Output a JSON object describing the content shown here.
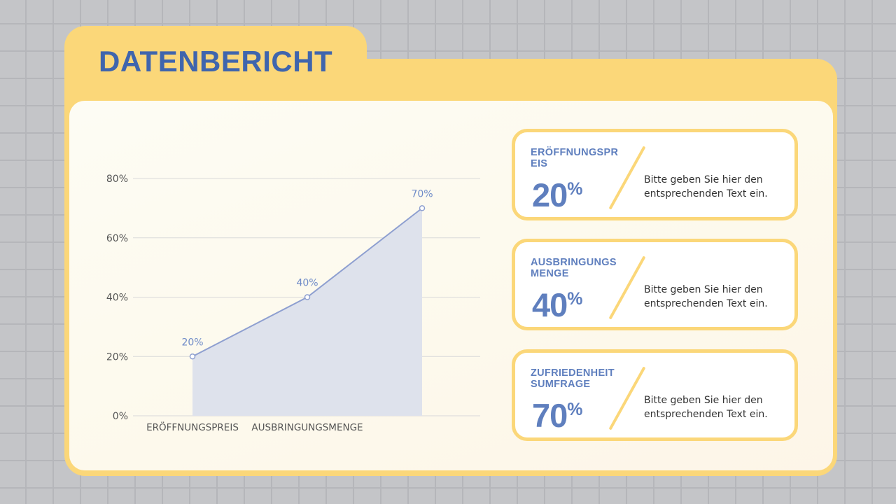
{
  "title": "DATENBERICHT",
  "colors": {
    "accent": "#fbd779",
    "primary": "#3f65ad",
    "series": "#8e9fd0",
    "area": "#dee2ec"
  },
  "chart_data": {
    "type": "area",
    "categories": [
      "ERÖFFNUNGSPREIS",
      "AUSBRINGUNGSMENGE",
      ""
    ],
    "values": [
      20,
      40,
      70
    ],
    "data_labels": [
      "20%",
      "40%",
      "70%"
    ],
    "yticks": [
      "0%",
      "20%",
      "40%",
      "60%",
      "80%"
    ],
    "ylim": [
      0,
      80
    ],
    "grid": true,
    "legend": "none"
  },
  "cards": [
    {
      "label": "ERÖFFNUNGSPREIS",
      "value": "20",
      "unit": "%",
      "text": "Bitte geben Sie hier den entsprechenden Text ein."
    },
    {
      "label": "AUSBRINGUNGSMENGE",
      "value": "40",
      "unit": "%",
      "text": "Bitte geben Sie hier den entsprechenden Text ein."
    },
    {
      "label": "ZUFRIEDENHEIT SUMFRAGE",
      "value": "70",
      "unit": "%",
      "text": "Bitte geben Sie hier den entsprechenden Text ein."
    }
  ]
}
